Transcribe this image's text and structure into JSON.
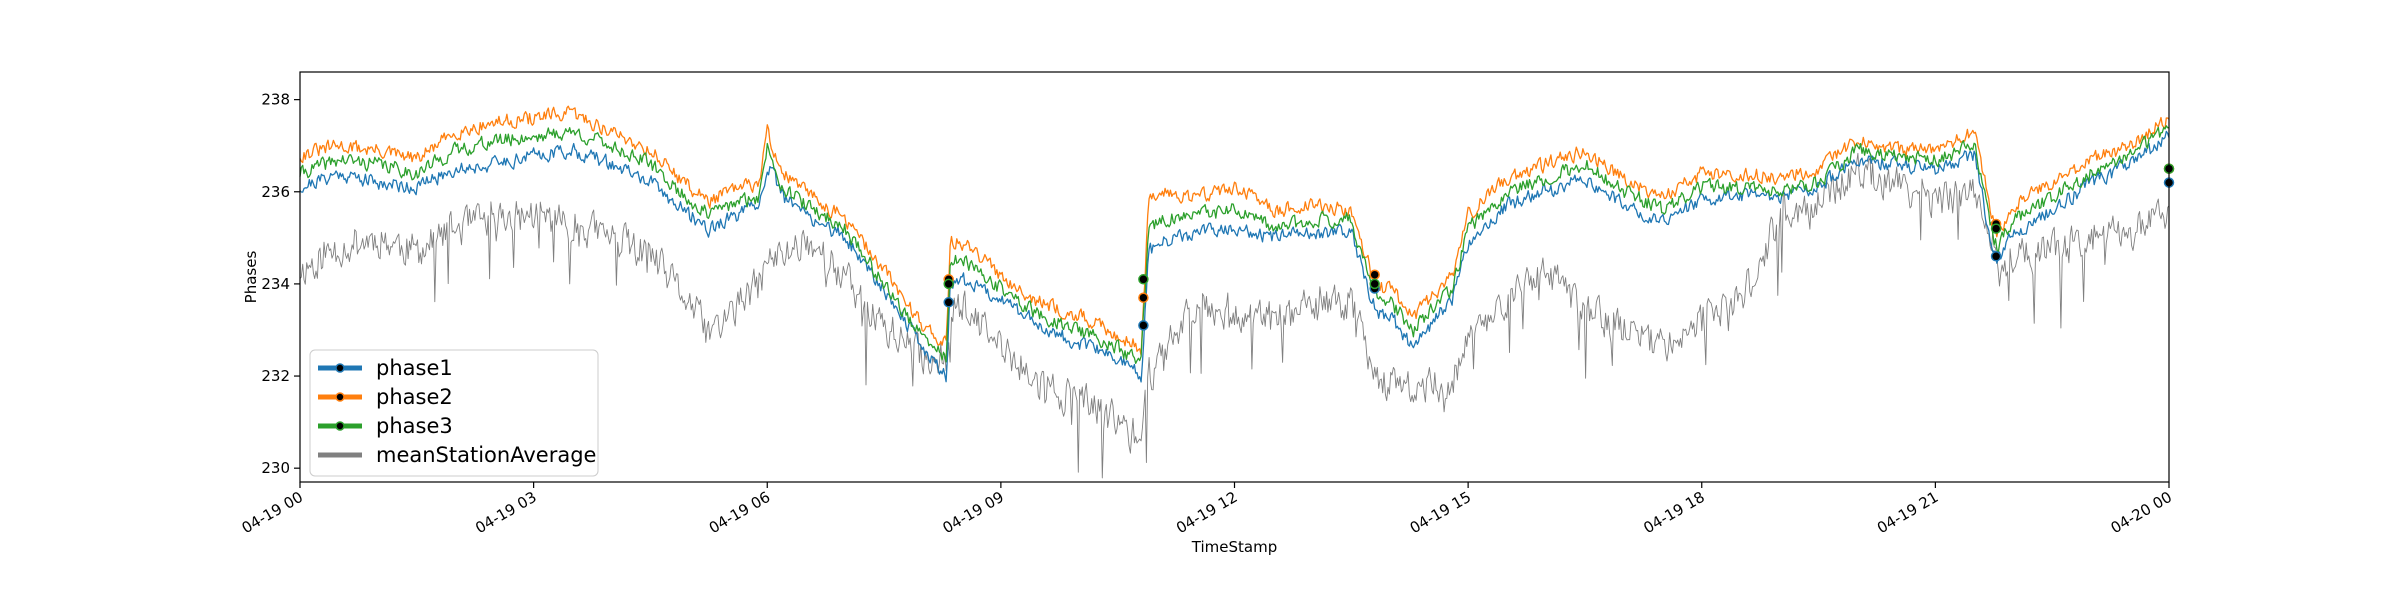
{
  "chart_data": {
    "type": "line",
    "title": "",
    "xlabel": "TimeStamp",
    "ylabel": "Phases",
    "x_start": "04-19 00:00",
    "x_end": "04-20 00:00",
    "xlim_hours": [
      0,
      24
    ],
    "ylim": [
      229.7,
      238.6
    ],
    "x_ticks": [
      {
        "hour": 0,
        "label": "04-19 00"
      },
      {
        "hour": 3,
        "label": "04-19 03"
      },
      {
        "hour": 6,
        "label": "04-19 06"
      },
      {
        "hour": 9,
        "label": "04-19 09"
      },
      {
        "hour": 12,
        "label": "04-19 12"
      },
      {
        "hour": 15,
        "label": "04-19 15"
      },
      {
        "hour": 18,
        "label": "04-19 18"
      },
      {
        "hour": 21,
        "label": "04-19 21"
      },
      {
        "hour": 24,
        "label": "04-20 00"
      }
    ],
    "y_ticks": [
      230,
      232,
      234,
      236,
      238
    ],
    "grid": false,
    "legend_position": "lower-left",
    "series": [
      {
        "name": "phase1",
        "color": "#1f77b4",
        "x": [
          0,
          0.5,
          1,
          1.5,
          2,
          2.5,
          3,
          3.5,
          4,
          4.5,
          5,
          5.25,
          5.5,
          5.9,
          6,
          6.2,
          6.5,
          7,
          7.5,
          8,
          8.3,
          8.35,
          8.5,
          9,
          9.5,
          10,
          10.5,
          10.8,
          10.9,
          11.1,
          11.5,
          12,
          12.5,
          13,
          13.5,
          13.75,
          13.85,
          14,
          14.3,
          14.8,
          15,
          15.5,
          16,
          16.5,
          17,
          17.5,
          18,
          18.5,
          19,
          19.5,
          20,
          20.5,
          21,
          21.5,
          21.75,
          21.8,
          22,
          22.5,
          23,
          23.5,
          24
        ],
        "values": [
          236.1,
          236.4,
          236.2,
          236.1,
          236.5,
          236.6,
          236.8,
          236.9,
          236.6,
          236.2,
          235.5,
          235.2,
          235.4,
          235.7,
          236.6,
          235.9,
          235.5,
          235.0,
          233.9,
          232.6,
          232.0,
          234.0,
          234.1,
          233.7,
          233.1,
          232.7,
          232.4,
          232.0,
          234.7,
          234.9,
          235.1,
          235.2,
          235.0,
          235.1,
          235.2,
          233.6,
          233.4,
          233.3,
          232.6,
          233.7,
          234.9,
          235.7,
          236.0,
          236.3,
          235.7,
          235.4,
          235.8,
          235.9,
          235.9,
          236.1,
          236.7,
          236.6,
          236.5,
          236.8,
          234.6,
          234.5,
          235.1,
          235.6,
          236.2,
          236.6,
          237.2
        ]
      },
      {
        "name": "phase2",
        "color": "#ff7f0e",
        "x": [
          0,
          0.5,
          1,
          1.5,
          2,
          2.5,
          3,
          3.5,
          4,
          4.5,
          5,
          5.25,
          5.5,
          5.9,
          6,
          6.2,
          6.5,
          7,
          7.5,
          8,
          8.3,
          8.35,
          8.5,
          9,
          9.5,
          10,
          10.5,
          10.8,
          10.9,
          11.1,
          11.5,
          12,
          12.5,
          13,
          13.5,
          13.75,
          13.85,
          14,
          14.3,
          14.8,
          15,
          15.5,
          16,
          16.5,
          17,
          17.5,
          18,
          18.5,
          19,
          19.5,
          20,
          20.5,
          21,
          21.5,
          21.75,
          21.8,
          22,
          22.5,
          23,
          23.5,
          24
        ],
        "values": [
          236.8,
          237.0,
          236.9,
          236.7,
          237.3,
          237.5,
          237.6,
          237.7,
          237.3,
          236.9,
          236.1,
          235.8,
          236.0,
          236.2,
          237.3,
          236.4,
          236.0,
          235.4,
          234.3,
          233.1,
          232.7,
          234.9,
          234.9,
          234.2,
          233.6,
          233.3,
          232.9,
          232.6,
          235.8,
          236.0,
          235.9,
          236.1,
          235.6,
          235.7,
          235.6,
          234.3,
          233.9,
          233.9,
          233.3,
          234.2,
          235.5,
          236.3,
          236.6,
          236.9,
          236.3,
          235.9,
          236.4,
          236.4,
          236.3,
          236.5,
          237.1,
          236.9,
          236.9,
          237.3,
          235.3,
          235.1,
          235.7,
          236.2,
          236.7,
          237.0,
          237.6
        ]
      },
      {
        "name": "phase3",
        "color": "#2ca02c",
        "x": [
          0,
          0.5,
          1,
          1.5,
          2,
          2.5,
          3,
          3.5,
          4,
          4.5,
          5,
          5.25,
          5.5,
          5.9,
          6,
          6.2,
          6.5,
          7,
          7.5,
          8,
          8.3,
          8.35,
          8.5,
          9,
          9.5,
          10,
          10.5,
          10.8,
          10.9,
          11.1,
          11.5,
          12,
          12.5,
          13,
          13.5,
          13.75,
          13.85,
          14,
          14.3,
          14.8,
          15,
          15.5,
          16,
          16.5,
          17,
          17.5,
          18,
          18.5,
          19,
          19.5,
          20,
          20.5,
          21,
          21.5,
          21.75,
          21.8,
          22,
          22.5,
          23,
          23.5,
          24
        ],
        "values": [
          236.4,
          236.7,
          236.6,
          236.4,
          236.9,
          237.1,
          237.2,
          237.3,
          237.0,
          236.6,
          235.8,
          235.5,
          235.7,
          235.9,
          237.0,
          236.1,
          235.7,
          235.2,
          234.0,
          232.8,
          232.4,
          234.5,
          234.5,
          233.9,
          233.3,
          233.0,
          232.6,
          232.3,
          235.2,
          235.4,
          235.5,
          235.6,
          235.2,
          235.4,
          235.4,
          234.0,
          233.7,
          233.6,
          233.0,
          233.9,
          235.2,
          236.0,
          236.3,
          236.6,
          236.0,
          235.6,
          236.1,
          236.1,
          236.0,
          236.2,
          236.9,
          236.8,
          236.7,
          237.0,
          235.0,
          234.8,
          235.4,
          235.9,
          236.4,
          236.8,
          237.4
        ]
      },
      {
        "name": "meanStationAverage",
        "color": "#808080",
        "x": [
          0,
          0.5,
          1,
          1.5,
          2,
          2.5,
          3,
          3.5,
          4,
          4.5,
          5,
          5.25,
          5.5,
          5.9,
          6,
          6.2,
          6.5,
          7,
          7.5,
          8,
          8.3,
          8.35,
          8.5,
          9,
          9.5,
          10,
          10.5,
          10.8,
          10.9,
          11.1,
          11.5,
          12,
          12.5,
          13,
          13.5,
          13.75,
          13.85,
          14,
          14.3,
          14.8,
          15,
          15.5,
          16,
          16.5,
          17,
          17.5,
          18,
          18.5,
          19,
          19.5,
          20,
          20.5,
          21,
          21.5,
          21.75,
          21.8,
          22,
          22.5,
          23,
          23.5,
          24
        ],
        "values": [
          234.3,
          234.8,
          235.0,
          234.7,
          235.2,
          235.4,
          235.5,
          235.3,
          235.0,
          234.6,
          233.6,
          232.9,
          233.3,
          234.0,
          234.5,
          234.6,
          235.0,
          234.1,
          233.1,
          232.4,
          232.4,
          233.6,
          233.5,
          232.6,
          231.8,
          231.5,
          231.0,
          230.6,
          232.0,
          232.6,
          233.6,
          233.4,
          233.2,
          233.5,
          233.6,
          232.4,
          232.0,
          231.8,
          231.7,
          231.9,
          232.8,
          233.7,
          234.2,
          233.5,
          233.0,
          232.7,
          233.2,
          233.6,
          235.4,
          235.8,
          236.4,
          236.2,
          235.8,
          236.0,
          235.0,
          234.2,
          234.6,
          234.7,
          235.0,
          235.1,
          235.6
        ]
      }
    ],
    "markers": [
      {
        "series": "phase1",
        "x": [
          8.33,
          10.83,
          13.8,
          21.78,
          24.0
        ],
        "values": [
          233.6,
          233.1,
          233.9,
          234.6,
          236.2
        ]
      },
      {
        "series": "phase2",
        "x": [
          8.33,
          10.83,
          13.8,
          21.78,
          24.0
        ],
        "values": [
          234.1,
          233.7,
          234.2,
          235.3,
          236.5
        ]
      },
      {
        "series": "phase3",
        "x": [
          8.33,
          10.83,
          13.8,
          21.78,
          24.0
        ],
        "values": [
          234.0,
          234.1,
          234.0,
          235.2,
          236.5
        ]
      }
    ]
  }
}
